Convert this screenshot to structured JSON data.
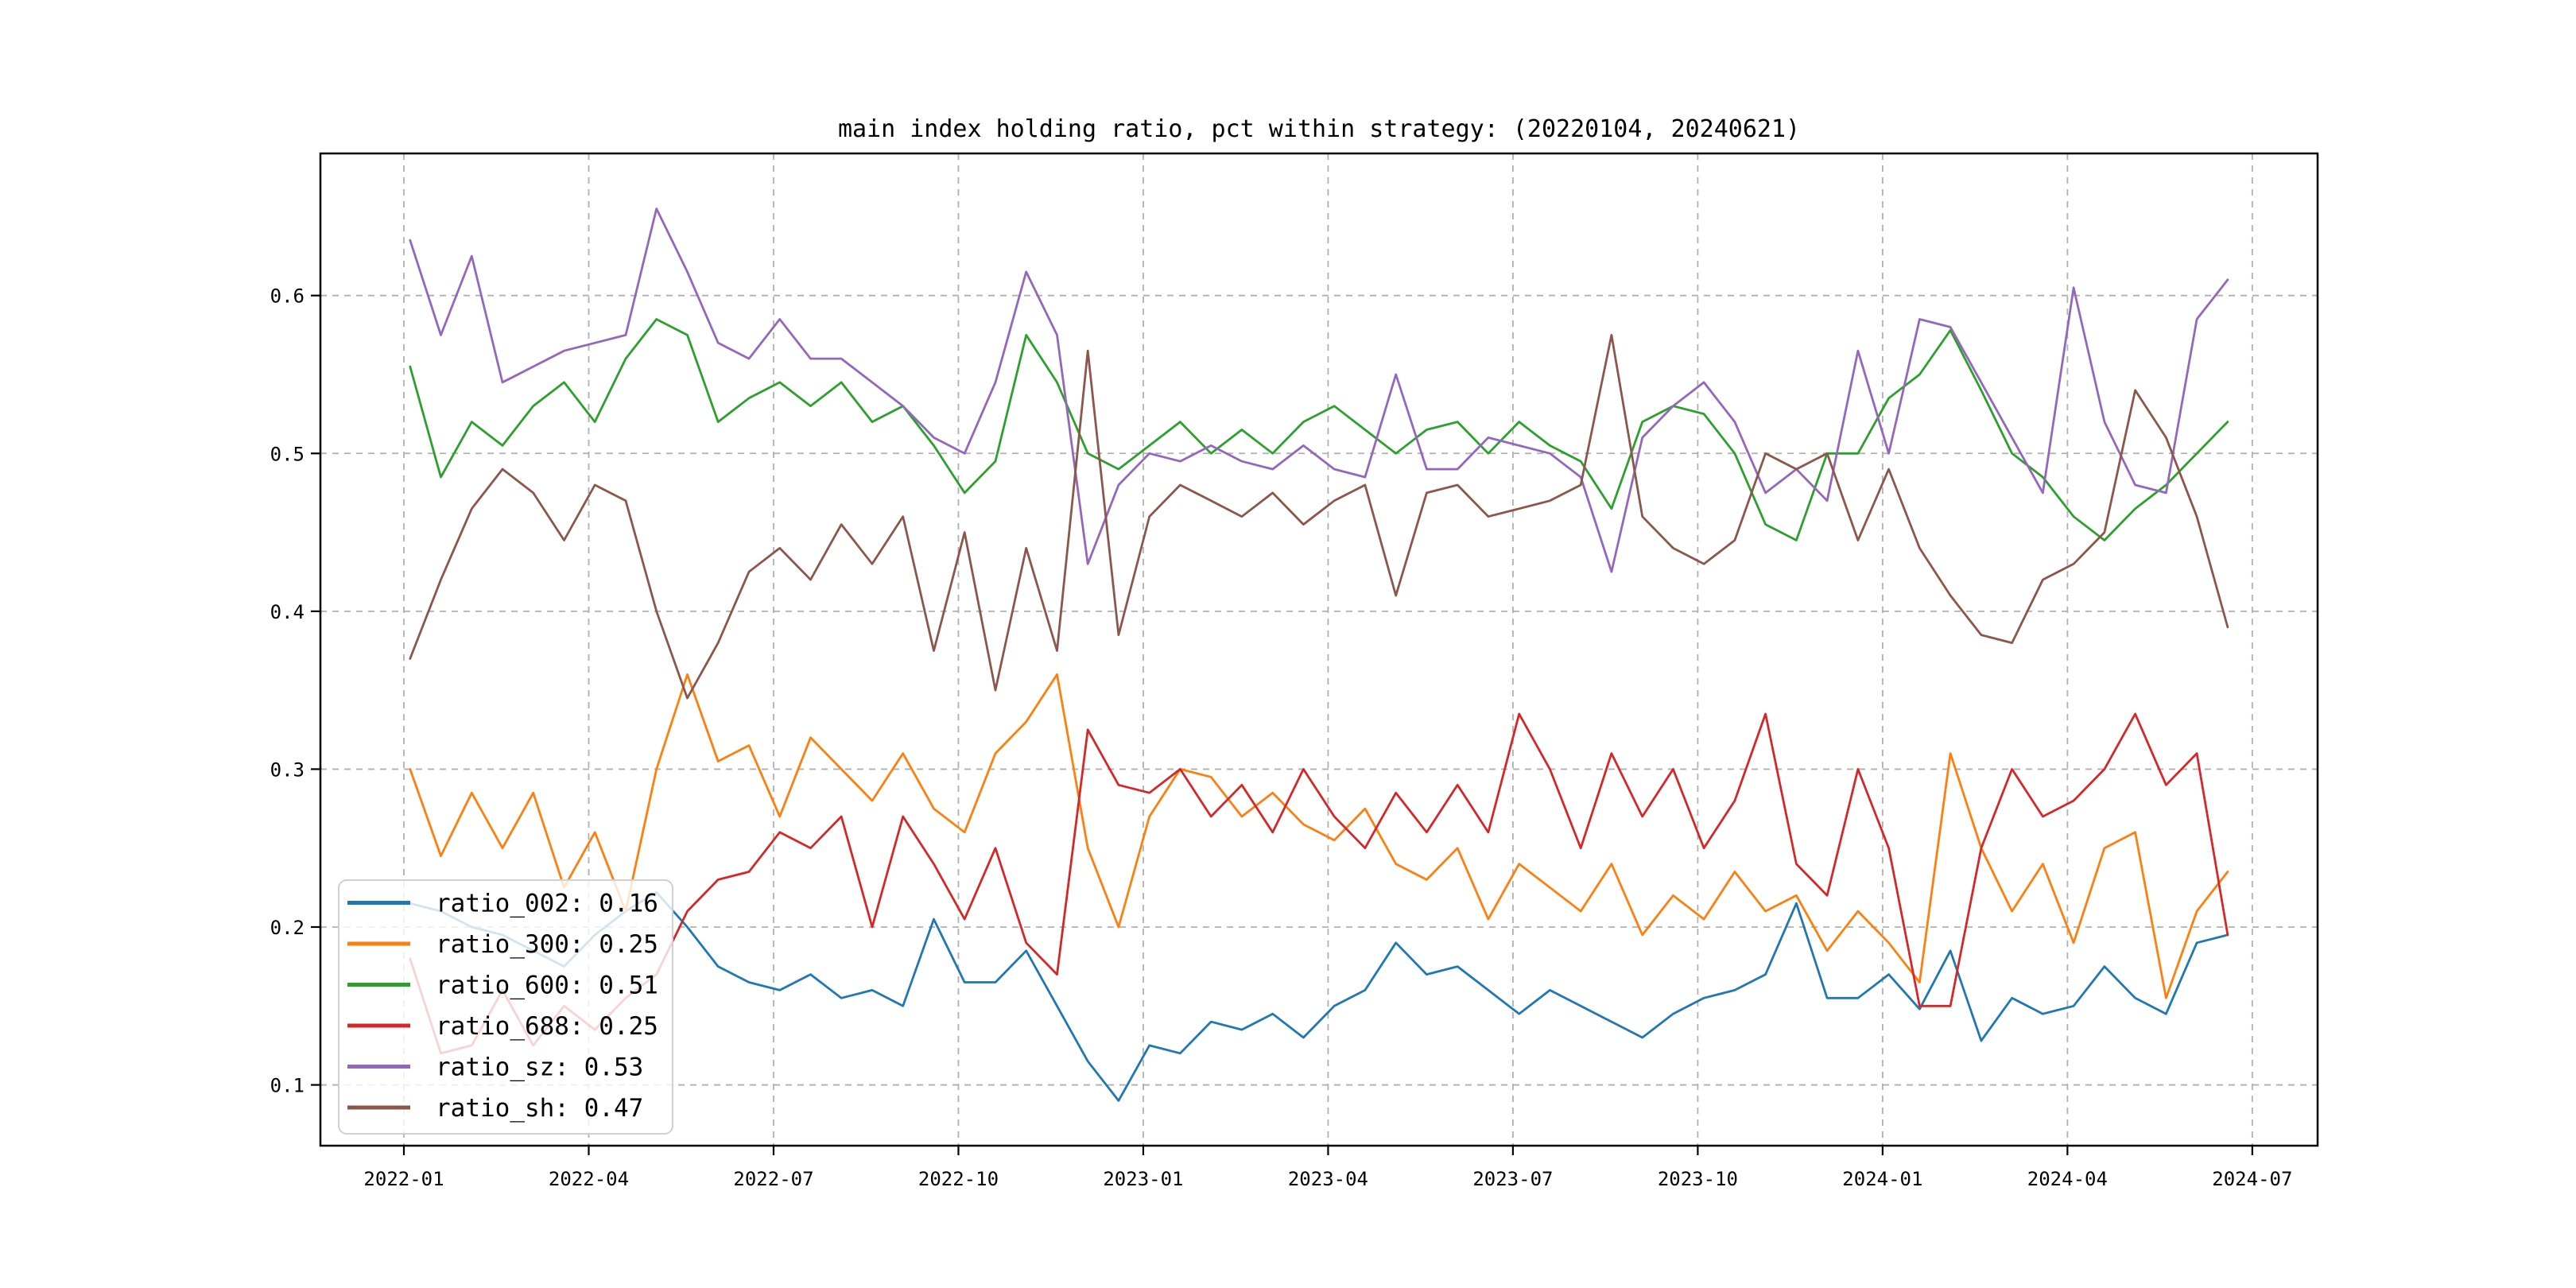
{
  "title": "main index holding ratio, pct within strategy: (20220104, 20240621)",
  "chart_data": {
    "type": "line",
    "title": "main index holding ratio, pct within strategy: (20220104, 20240621)",
    "xlabel": "",
    "ylabel": "",
    "grid": true,
    "grid_style": "dashed",
    "grid_color": "#b0b0b0",
    "axis_color": "#000000",
    "background_color": "#ffffff",
    "legend_position": "lower left",
    "date_range": [
      "20220104",
      "20240621"
    ],
    "x_unit": "months since 2022-01",
    "xlim_months": [
      -1.355,
      31.06
    ],
    "ylim": [
      0.0615,
      0.69
    ],
    "y_ticks": [
      0.1,
      0.2,
      0.3,
      0.4,
      0.5,
      0.6
    ],
    "y_tick_labels": [
      "0.1",
      "0.2",
      "0.3",
      "0.4",
      "0.5",
      "0.6"
    ],
    "x_tick_months": [
      0,
      3,
      6,
      9,
      12,
      15,
      18,
      21,
      24,
      27,
      30
    ],
    "x_tick_labels": [
      "2022-01",
      "2022-04",
      "2022-07",
      "2022-10",
      "2023-01",
      "2023-04",
      "2023-07",
      "2023-10",
      "2024-01",
      "2024-04",
      "2024-07"
    ],
    "x_months": [
      0.1,
      0.6,
      1.1,
      1.6,
      2.1,
      2.6,
      3.1,
      3.6,
      4.1,
      4.6,
      5.1,
      5.6,
      6.1,
      6.6,
      7.1,
      7.6,
      8.1,
      8.6,
      9.1,
      9.6,
      10.1,
      10.6,
      11.1,
      11.6,
      12.1,
      12.6,
      13.1,
      13.6,
      14.1,
      14.6,
      15.1,
      15.6,
      16.1,
      16.6,
      17.1,
      17.6,
      18.1,
      18.6,
      19.1,
      19.6,
      20.1,
      20.6,
      21.1,
      21.6,
      22.1,
      22.6,
      23.1,
      23.6,
      24.1,
      24.6,
      25.1,
      25.6,
      26.1,
      26.6,
      27.1,
      27.6,
      28.1,
      28.6,
      29.1,
      29.6
    ],
    "series": [
      {
        "name": "ratio_002",
        "legend_label": "ratio_002: 0.16",
        "color": "#1f77b4",
        "values": [
          0.215,
          0.21,
          0.2,
          0.195,
          0.185,
          0.175,
          0.195,
          0.21,
          0.222,
          0.2,
          0.175,
          0.165,
          0.16,
          0.17,
          0.155,
          0.16,
          0.15,
          0.205,
          0.165,
          0.165,
          0.185,
          0.15,
          0.115,
          0.09,
          0.125,
          0.12,
          0.14,
          0.135,
          0.145,
          0.13,
          0.15,
          0.16,
          0.19,
          0.17,
          0.175,
          0.16,
          0.145,
          0.16,
          0.15,
          0.14,
          0.13,
          0.145,
          0.155,
          0.16,
          0.17,
          0.215,
          0.155,
          0.155,
          0.17,
          0.148,
          0.185,
          0.128,
          0.155,
          0.145,
          0.15,
          0.175,
          0.155,
          0.145,
          0.19,
          0.195
        ]
      },
      {
        "name": "ratio_300",
        "legend_label": "ratio_300: 0.25",
        "color": "#ff7f0e",
        "values": [
          0.3,
          0.245,
          0.285,
          0.25,
          0.285,
          0.225,
          0.26,
          0.21,
          0.3,
          0.36,
          0.305,
          0.315,
          0.27,
          0.32,
          0.3,
          0.28,
          0.31,
          0.275,
          0.26,
          0.31,
          0.33,
          0.36,
          0.25,
          0.2,
          0.27,
          0.3,
          0.295,
          0.27,
          0.285,
          0.265,
          0.255,
          0.275,
          0.24,
          0.23,
          0.25,
          0.205,
          0.24,
          0.225,
          0.21,
          0.24,
          0.195,
          0.22,
          0.205,
          0.235,
          0.21,
          0.22,
          0.185,
          0.21,
          0.19,
          0.165,
          0.31,
          0.25,
          0.21,
          0.24,
          0.19,
          0.25,
          0.26,
          0.155,
          0.21,
          0.235
        ]
      },
      {
        "name": "ratio_600",
        "legend_label": "ratio_600: 0.51",
        "color": "#2ca02c",
        "values": [
          0.555,
          0.485,
          0.52,
          0.505,
          0.53,
          0.545,
          0.52,
          0.56,
          0.585,
          0.575,
          0.52,
          0.535,
          0.545,
          0.53,
          0.545,
          0.52,
          0.53,
          0.505,
          0.475,
          0.495,
          0.575,
          0.545,
          0.5,
          0.49,
          0.505,
          0.52,
          0.5,
          0.515,
          0.5,
          0.52,
          0.53,
          0.515,
          0.5,
          0.515,
          0.52,
          0.5,
          0.52,
          0.505,
          0.495,
          0.465,
          0.52,
          0.53,
          0.525,
          0.5,
          0.455,
          0.445,
          0.5,
          0.5,
          0.535,
          0.55,
          0.578,
          0.54,
          0.5,
          0.485,
          0.46,
          0.445,
          0.465,
          0.48,
          0.5,
          0.52
        ]
      },
      {
        "name": "ratio_688",
        "legend_label": "ratio_688: 0.25",
        "color": "#d62728",
        "values": [
          0.18,
          0.12,
          0.125,
          0.16,
          0.125,
          0.15,
          0.135,
          0.155,
          0.17,
          0.21,
          0.23,
          0.235,
          0.26,
          0.25,
          0.27,
          0.2,
          0.27,
          0.24,
          0.205,
          0.25,
          0.19,
          0.17,
          0.325,
          0.29,
          0.285,
          0.3,
          0.27,
          0.29,
          0.26,
          0.3,
          0.27,
          0.25,
          0.285,
          0.26,
          0.29,
          0.26,
          0.335,
          0.3,
          0.25,
          0.31,
          0.27,
          0.3,
          0.25,
          0.28,
          0.335,
          0.24,
          0.22,
          0.3,
          0.25,
          0.15,
          0.15,
          0.25,
          0.3,
          0.27,
          0.28,
          0.3,
          0.335,
          0.29,
          0.31,
          0.195
        ]
      },
      {
        "name": "ratio_sz",
        "legend_label": "ratio_sz: 0.53",
        "color": "#9467bd",
        "values": [
          0.635,
          0.575,
          0.625,
          0.545,
          0.555,
          0.565,
          0.57,
          0.575,
          0.655,
          0.615,
          0.57,
          0.56,
          0.585,
          0.56,
          0.56,
          0.545,
          0.53,
          0.51,
          0.5,
          0.545,
          0.615,
          0.575,
          0.43,
          0.48,
          0.5,
          0.495,
          0.505,
          0.495,
          0.49,
          0.505,
          0.49,
          0.485,
          0.55,
          0.49,
          0.49,
          0.51,
          0.505,
          0.5,
          0.485,
          0.425,
          0.51,
          0.53,
          0.545,
          0.52,
          0.475,
          0.49,
          0.47,
          0.565,
          0.5,
          0.585,
          0.58,
          0.545,
          0.51,
          0.475,
          0.605,
          0.52,
          0.48,
          0.475,
          0.585,
          0.61
        ]
      },
      {
        "name": "ratio_sh",
        "legend_label": "ratio_sh: 0.47",
        "color": "#8c564b",
        "values": [
          0.37,
          0.42,
          0.465,
          0.49,
          0.475,
          0.445,
          0.48,
          0.47,
          0.4,
          0.345,
          0.38,
          0.425,
          0.44,
          0.42,
          0.455,
          0.43,
          0.46,
          0.375,
          0.45,
          0.35,
          0.44,
          0.375,
          0.565,
          0.385,
          0.46,
          0.48,
          0.47,
          0.46,
          0.475,
          0.455,
          0.47,
          0.48,
          0.41,
          0.475,
          0.48,
          0.46,
          0.465,
          0.47,
          0.48,
          0.575,
          0.46,
          0.44,
          0.43,
          0.445,
          0.5,
          0.49,
          0.5,
          0.445,
          0.49,
          0.44,
          0.41,
          0.385,
          0.38,
          0.42,
          0.43,
          0.45,
          0.54,
          0.51,
          0.46,
          0.39
        ]
      }
    ]
  }
}
